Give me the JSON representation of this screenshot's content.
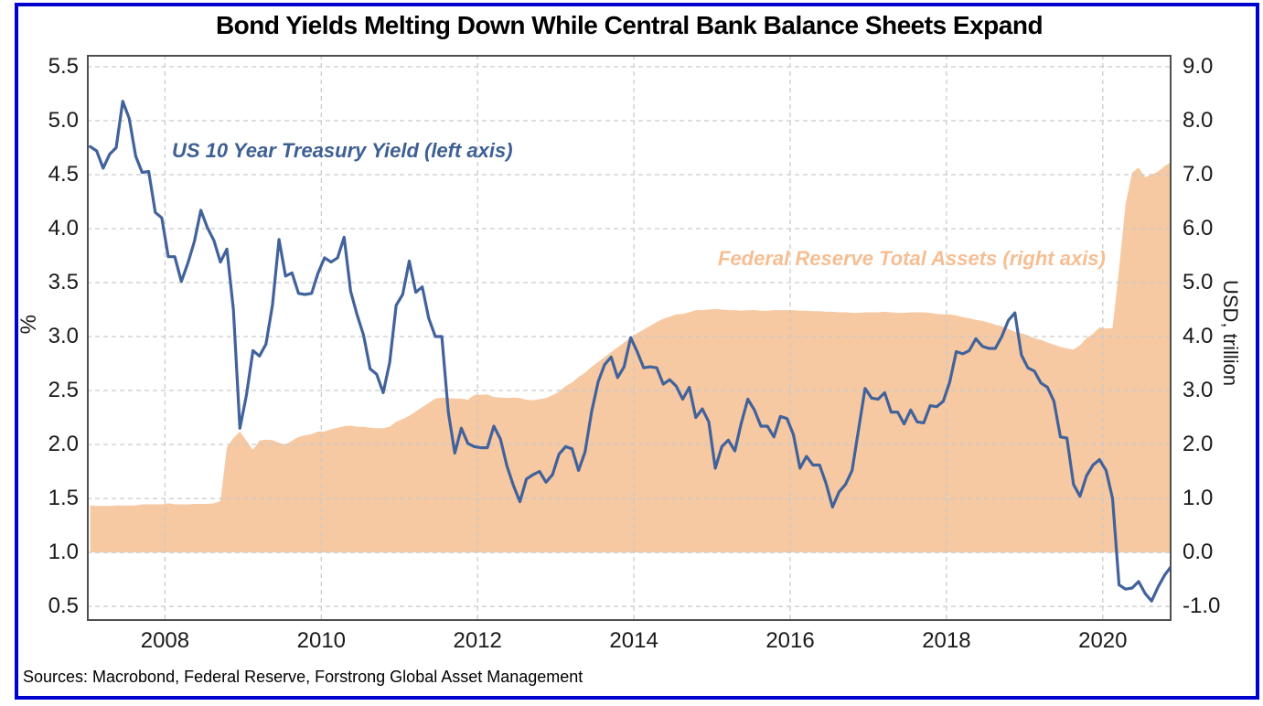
{
  "figure": {
    "source_note": "Sources: Macrobond, Federal Reserve, Forstrong Global Asset Management",
    "border_color": "#0202CF",
    "frame_color": "#4f4f4f"
  },
  "chart_data": {
    "type": "line",
    "title": "Bond Yields Melting Down While Central Bank Balance Sheets Expand",
    "grid": {
      "show": true,
      "style": "dashed",
      "color": "#c9c9c9"
    },
    "legend_position": "inline-annotations",
    "x_axis": {
      "range": [
        2007.0,
        2020.88
      ],
      "ticks": [
        2008,
        2010,
        2012,
        2014,
        2016,
        2018,
        2020
      ],
      "tick_labels": [
        "2008",
        "2010",
        "2012",
        "2014",
        "2016",
        "2018",
        "2020"
      ]
    },
    "left_axis": {
      "label": "%",
      "range": [
        0.365,
        5.61
      ],
      "ticks": [
        0.5,
        1.0,
        1.5,
        2.0,
        2.5,
        3.0,
        3.5,
        4.0,
        4.5,
        5.0,
        5.5
      ]
    },
    "right_axis": {
      "label": "USD, trillion",
      "range": [
        -1.27,
        9.22
      ],
      "ticks": [
        -1.0,
        0.0,
        1.0,
        2.0,
        3.0,
        4.0,
        5.0,
        6.0,
        7.0,
        8.0,
        9.0
      ]
    },
    "series": [
      {
        "name": "US 10 Year Treasury Yield (left axis)",
        "type": "line",
        "axis": "left",
        "color": "#41629B",
        "label_color": "#3E5F94",
        "x_start": 2007.0417,
        "x_step": 0.0833333,
        "values": [
          4.76,
          4.72,
          4.56,
          4.69,
          4.75,
          5.18,
          5.02,
          4.67,
          4.52,
          4.53,
          4.15,
          4.1,
          3.74,
          3.74,
          3.51,
          3.68,
          3.88,
          4.17,
          4.01,
          3.89,
          3.69,
          3.81,
          3.25,
          2.15,
          2.46,
          2.87,
          2.82,
          2.93,
          3.29,
          3.9,
          3.56,
          3.59,
          3.4,
          3.39,
          3.4,
          3.59,
          3.73,
          3.69,
          3.73,
          3.92,
          3.42,
          3.2,
          3.01,
          2.7,
          2.65,
          2.48,
          2.76,
          3.29,
          3.39,
          3.7,
          3.41,
          3.46,
          3.17,
          3.0,
          3.0,
          2.3,
          1.92,
          2.15,
          2.01,
          1.98,
          1.97,
          1.97,
          2.17,
          2.05,
          1.8,
          1.62,
          1.47,
          1.68,
          1.72,
          1.75,
          1.65,
          1.72,
          1.91,
          1.98,
          1.96,
          1.76,
          1.93,
          2.3,
          2.58,
          2.74,
          2.81,
          2.62,
          2.72,
          2.99,
          2.86,
          2.71,
          2.72,
          2.71,
          2.56,
          2.6,
          2.54,
          2.42,
          2.53,
          2.25,
          2.33,
          2.21,
          1.78,
          1.98,
          2.04,
          1.94,
          2.2,
          2.42,
          2.32,
          2.17,
          2.17,
          2.07,
          2.26,
          2.24,
          2.09,
          1.78,
          1.89,
          1.81,
          1.81,
          1.64,
          1.42,
          1.56,
          1.63,
          1.76,
          2.14,
          2.52,
          2.43,
          2.42,
          2.48,
          2.3,
          2.3,
          2.19,
          2.32,
          2.21,
          2.2,
          2.36,
          2.35,
          2.4,
          2.58,
          2.86,
          2.84,
          2.87,
          2.98,
          2.91,
          2.89,
          2.89,
          3.0,
          3.15,
          3.22,
          2.83,
          2.71,
          2.68,
          2.57,
          2.53,
          2.4,
          2.07,
          2.06,
          1.63,
          1.52,
          1.71,
          1.81,
          1.86,
          1.76,
          1.5,
          0.7,
          0.66,
          0.67,
          0.73,
          0.62,
          0.55,
          0.68,
          0.79,
          0.87
        ]
      },
      {
        "name": "Federal Reserve Total Assets (right axis)",
        "type": "area",
        "axis": "right",
        "color": "#F7C9A2",
        "label_color": "#F6BE92",
        "baseline": 0,
        "x_start": 2007.0417,
        "x_step": 0.0833333,
        "values": [
          0.87,
          0.86,
          0.86,
          0.86,
          0.87,
          0.87,
          0.87,
          0.87,
          0.89,
          0.89,
          0.89,
          0.89,
          0.91,
          0.89,
          0.89,
          0.89,
          0.9,
          0.9,
          0.9,
          0.91,
          0.95,
          1.95,
          2.12,
          2.24,
          2.07,
          1.9,
          2.07,
          2.09,
          2.08,
          2.03,
          2.0,
          2.07,
          2.14,
          2.17,
          2.19,
          2.24,
          2.24,
          2.28,
          2.31,
          2.34,
          2.35,
          2.33,
          2.33,
          2.31,
          2.3,
          2.3,
          2.33,
          2.42,
          2.47,
          2.53,
          2.61,
          2.69,
          2.77,
          2.85,
          2.87,
          2.86,
          2.85,
          2.85,
          2.83,
          2.92,
          2.92,
          2.93,
          2.88,
          2.87,
          2.86,
          2.87,
          2.86,
          2.83,
          2.82,
          2.84,
          2.86,
          2.91,
          2.98,
          3.08,
          3.15,
          3.25,
          3.33,
          3.44,
          3.53,
          3.62,
          3.71,
          3.8,
          3.89,
          3.99,
          4.06,
          4.13,
          4.2,
          4.27,
          4.33,
          4.37,
          4.41,
          4.42,
          4.45,
          4.49,
          4.49,
          4.5,
          4.51,
          4.5,
          4.49,
          4.49,
          4.48,
          4.49,
          4.49,
          4.48,
          4.48,
          4.49,
          4.49,
          4.49,
          4.49,
          4.48,
          4.48,
          4.47,
          4.47,
          4.46,
          4.46,
          4.45,
          4.45,
          4.44,
          4.44,
          4.45,
          4.45,
          4.45,
          4.46,
          4.45,
          4.44,
          4.44,
          4.45,
          4.45,
          4.45,
          4.44,
          4.42,
          4.41,
          4.41,
          4.39,
          4.36,
          4.34,
          4.31,
          4.29,
          4.26,
          4.22,
          4.19,
          4.14,
          4.09,
          4.06,
          4.02,
          3.97,
          3.94,
          3.89,
          3.85,
          3.81,
          3.78,
          3.76,
          3.84,
          3.97,
          4.05,
          4.17,
          4.15,
          4.16,
          5.25,
          6.45,
          7.04,
          7.13,
          6.95,
          7.0,
          7.06,
          7.16,
          7.24
        ]
      }
    ]
  }
}
